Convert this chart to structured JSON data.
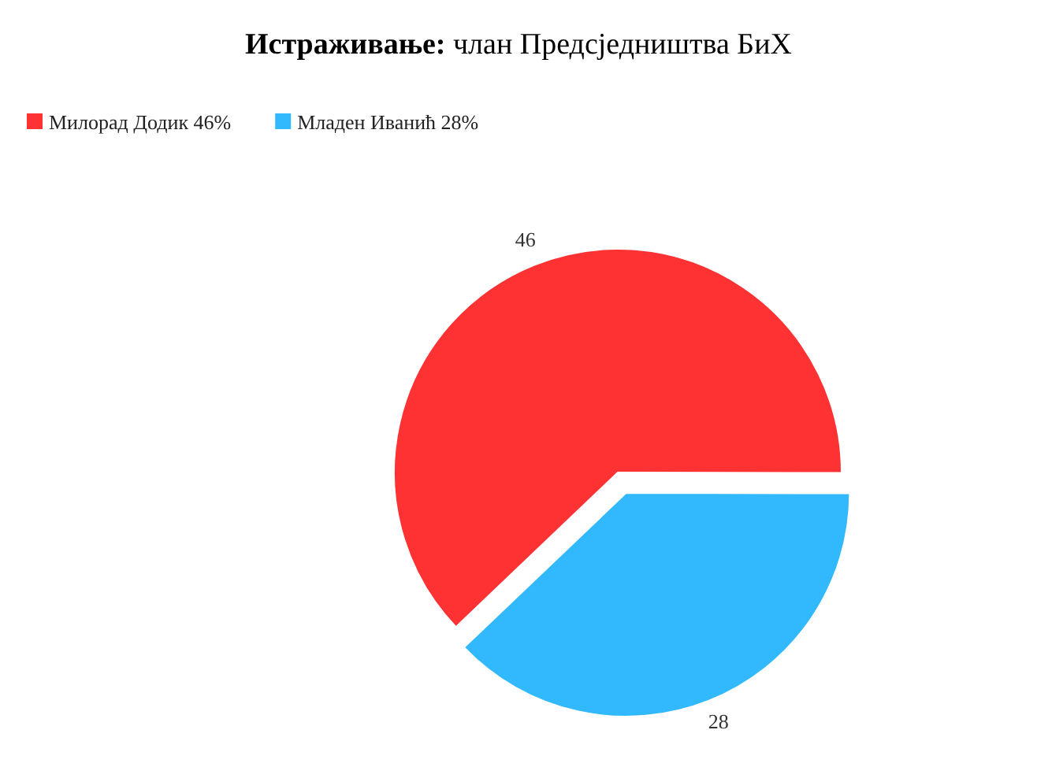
{
  "chart_data": {
    "type": "pie",
    "title": "Истраживање: члан Предсједништва БиХ",
    "categories": [
      "Милорад Додик 46%",
      "Младен Иванић 28%"
    ],
    "values": [
      46,
      28
    ],
    "colors": [
      "#fe3133",
      "#32b9fd"
    ],
    "legend": "top left",
    "data_labels": true
  }
}
